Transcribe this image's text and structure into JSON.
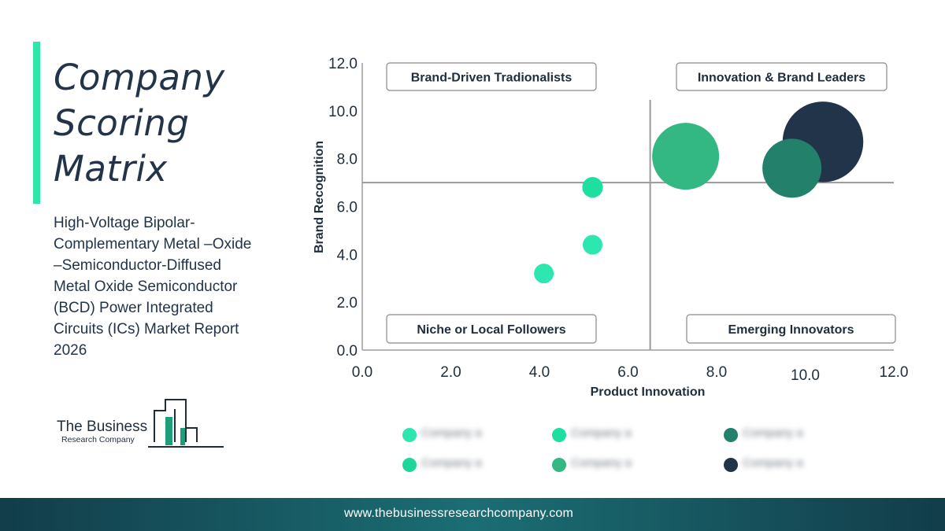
{
  "title": "Company Scoring Matrix",
  "subtitle": "High-Voltage Bipolar-Complementary Metal –Oxide –Semiconductor-Diffused Metal Oxide Semiconductor (BCD) Power Integrated Circuits (ICs) Market Report 2026",
  "logo": {
    "line1": "The Business",
    "line2": "Research Company"
  },
  "footer": {
    "url": "www.thebusinessresearchcompany.com"
  },
  "colors": {
    "accent": "#2ee6a6",
    "navy": "#23344a",
    "footer": "#1b6e74"
  },
  "chart_data": {
    "type": "scatter",
    "xlabel": "Product Innovation",
    "ylabel": "Brand Recognition",
    "xlim": [
      0,
      12
    ],
    "ylim": [
      0,
      12
    ],
    "xticks": [
      "0.0",
      "2.0",
      "4.0",
      "6.0",
      "8.0",
      "10.0",
      "12.0"
    ],
    "yticks": [
      "0.0",
      "2.0",
      "4.0",
      "6.0",
      "8.0",
      "10.0",
      "12.0"
    ],
    "divider_x": 6.5,
    "divider_y": 7.0,
    "quadrants": [
      {
        "label": "Brand-Driven Tradionalists",
        "position": "top-left"
      },
      {
        "label": "Innovation & Brand Leaders",
        "position": "top-right"
      },
      {
        "label": "Niche or Local Followers",
        "position": "bottom-left"
      },
      {
        "label": "Emerging Innovators",
        "position": "bottom-right"
      }
    ],
    "series": [
      {
        "name": "Company a",
        "x": 4.1,
        "y": 3.2,
        "size": 1.0,
        "color": "#2ee6b0"
      },
      {
        "name": "Company a",
        "x": 5.2,
        "y": 4.4,
        "size": 1.0,
        "color": "#2ee6b0"
      },
      {
        "name": "Company a",
        "x": 5.2,
        "y": 6.8,
        "size": 1.05,
        "color": "#1fdfa0"
      },
      {
        "name": "Company a",
        "x": 7.3,
        "y": 8.1,
        "size": 3.4,
        "color": "#33b884"
      },
      {
        "name": "Company a",
        "x": 10.4,
        "y": 8.7,
        "size": 4.1,
        "color": "#22344a"
      },
      {
        "name": "Company a",
        "x": 9.7,
        "y": 7.6,
        "size": 3.0,
        "color": "#23806b"
      }
    ],
    "legend": [
      {
        "label": "Company a",
        "color": "#2ee6b0"
      },
      {
        "label": "Company a",
        "color": "#1fdfa0"
      },
      {
        "label": "Company a",
        "color": "#23806b"
      },
      {
        "label": "Company a",
        "color": "#1fd69a"
      },
      {
        "label": "Company a",
        "color": "#33b884"
      },
      {
        "label": "Company a",
        "color": "#22344a"
      }
    ],
    "legend_placement": "bottom",
    "grid": false
  }
}
